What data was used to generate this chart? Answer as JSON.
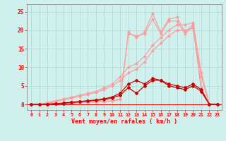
{
  "x": [
    0,
    1,
    2,
    3,
    4,
    5,
    6,
    7,
    8,
    9,
    10,
    11,
    12,
    13,
    14,
    15,
    16,
    17,
    18,
    19,
    20,
    21,
    22,
    23
  ],
  "line_diag1": [
    0,
    0,
    0.5,
    1.0,
    1.5,
    2.0,
    2.5,
    3.0,
    3.5,
    4.5,
    5.5,
    7.5,
    10.0,
    11.0,
    13.0,
    16.0,
    18.0,
    20.0,
    21.5,
    21.5,
    22.0,
    8.5,
    0.2,
    0.1
  ],
  "line_diag2": [
    0,
    0,
    0.3,
    0.7,
    1.2,
    1.7,
    2.2,
    2.7,
    3.2,
    4.0,
    5.0,
    6.5,
    8.5,
    9.5,
    11.5,
    14.5,
    16.5,
    18.5,
    20.0,
    20.0,
    20.5,
    7.5,
    0.1,
    0.0
  ],
  "line_spiky1": [
    0,
    0,
    0.1,
    0.2,
    0.3,
    0.4,
    0.5,
    0.6,
    0.7,
    0.8,
    1.0,
    1.5,
    19.5,
    18.0,
    19.5,
    24.5,
    19.5,
    23.0,
    23.5,
    19.5,
    21.5,
    4.5,
    0.1,
    0.0
  ],
  "line_spiky2": [
    0,
    0,
    0.1,
    0.15,
    0.25,
    0.35,
    0.45,
    0.55,
    0.65,
    0.75,
    0.9,
    1.3,
    19.0,
    18.5,
    19.0,
    23.0,
    19.0,
    22.5,
    22.5,
    19.0,
    21.0,
    4.0,
    0.1,
    0.0
  ],
  "line_dark1": [
    0,
    0,
    0.1,
    0.2,
    0.4,
    0.6,
    0.8,
    1.0,
    1.2,
    1.5,
    2.0,
    3.0,
    5.5,
    6.5,
    5.5,
    7.0,
    6.5,
    5.5,
    5.0,
    4.5,
    5.5,
    4.0,
    0.0,
    0.0
  ],
  "line_dark2": [
    0,
    0,
    0.05,
    0.15,
    0.3,
    0.5,
    0.7,
    0.9,
    1.1,
    1.3,
    1.7,
    2.5,
    4.5,
    3.0,
    5.0,
    6.5,
    6.5,
    5.0,
    4.5,
    4.0,
    5.0,
    3.5,
    0.0,
    0.0
  ],
  "bg_color": "#cff0ec",
  "grid_color": "#a8d8d0",
  "line_color_light": "#ff9999",
  "line_color_dark": "#cc0000",
  "xlabel": "Vent moyen/en rafales ( km/h )",
  "ylabel_ticks": [
    0,
    5,
    10,
    15,
    20,
    25
  ],
  "xlim": [
    -0.5,
    23.5
  ],
  "ylim": [
    -1.5,
    27
  ]
}
